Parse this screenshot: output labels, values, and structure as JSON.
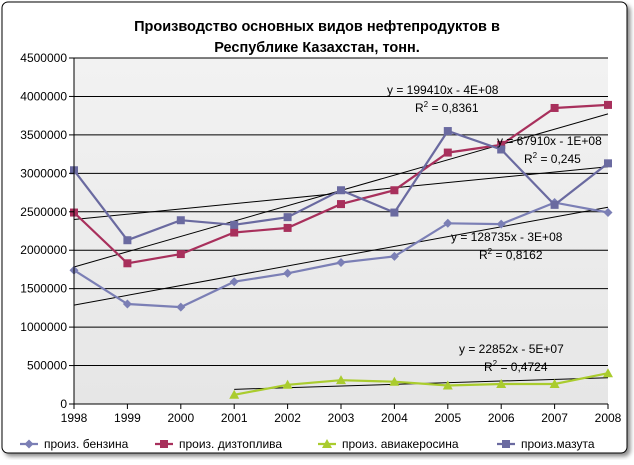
{
  "chart_data": {
    "type": "line",
    "title": "Производство основных видов нефтепродуктов в Республике Казахстан, тонн.",
    "title_lines": [
      "Производство основных видов нефтепродуктов в",
      "Республике Казахстан, тонн."
    ],
    "x": [
      1998,
      1999,
      2000,
      2001,
      2002,
      2003,
      2004,
      2005,
      2006,
      2007,
      2008
    ],
    "x_tick_labels": [
      "1998",
      "1999",
      "2000",
      "2001",
      "2002",
      "2003",
      "2004",
      "2005",
      "2006",
      "2007",
      "2008"
    ],
    "ylim": [
      0,
      4500000
    ],
    "y_tick_labels": [
      "0",
      "500000",
      "1000000",
      "1500000",
      "2000000",
      "2500000",
      "3000000",
      "3500000",
      "4000000",
      "4500000"
    ],
    "grid": "horizontal",
    "legend_position": "bottom",
    "series": [
      {
        "name": "произ. бензина",
        "color": "#7b7fb5",
        "marker": "diamond",
        "values": [
          1740000,
          1300000,
          1260000,
          1590000,
          1700000,
          1840000,
          1920000,
          2350000,
          2340000,
          2620000,
          2490000
        ],
        "trend": {
          "equation": "y = 128735x - 3E+08",
          "r2_prefix": "R",
          "r2_exp": "2",
          "r2_value": " = 0,8162"
        }
      },
      {
        "name": "произ. дизтоплива",
        "color": "#a8305c",
        "marker": "square",
        "values": [
          2490000,
          1830000,
          1950000,
          2230000,
          2290000,
          2600000,
          2780000,
          3270000,
          3370000,
          3850000,
          3890000
        ],
        "trend": {
          "equation": "y = 199410x - 4E+08",
          "r2_prefix": "R",
          "r2_exp": "2",
          "r2_value": " = 0,8361"
        }
      },
      {
        "name": "произ. авиакеросина",
        "color": "#aacc2e",
        "marker": "triangle",
        "values": [
          null,
          null,
          null,
          120000,
          250000,
          310000,
          290000,
          240000,
          260000,
          260000,
          400000
        ],
        "trend": {
          "equation": "y = 22852x - 5E+07",
          "r2_prefix": "R",
          "r2_exp": "2",
          "r2_value": " = 0,4724"
        }
      },
      {
        "name": "произ.мазута",
        "color": "#6a6aa0",
        "marker": "square",
        "values": [
          3040000,
          2130000,
          2390000,
          2330000,
          2430000,
          2780000,
          2490000,
          3550000,
          3310000,
          2590000,
          3130000
        ],
        "trend": {
          "equation": "y = 67910x - 1E+08",
          "r2_prefix": "R",
          "r2_exp": "2",
          "r2_value": " = 0,245"
        }
      }
    ]
  }
}
